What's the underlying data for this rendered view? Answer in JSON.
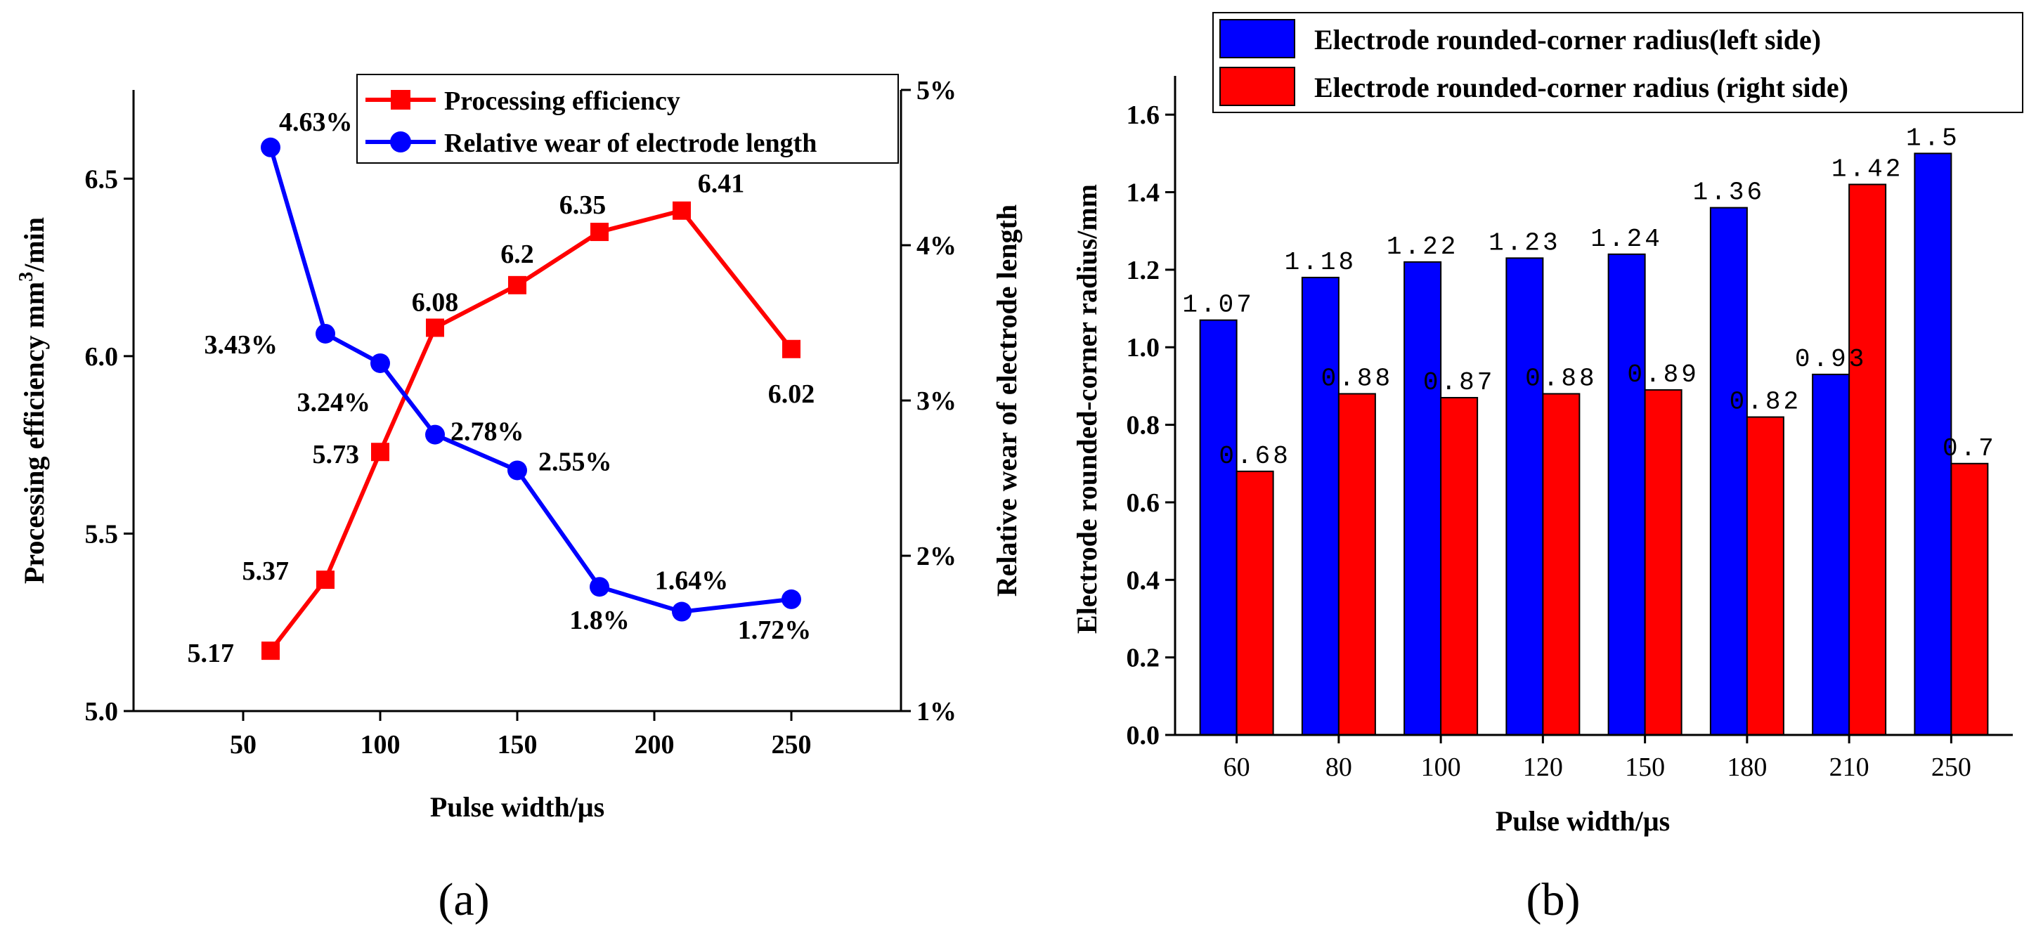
{
  "panel_labels": {
    "a": "(a)",
    "b": "(b)"
  },
  "colors": {
    "red": "#ff0000",
    "blue": "#0000ff",
    "axis": "#000000"
  },
  "chart_data": [
    {
      "type": "line",
      "panel": "(a)",
      "x": [
        60,
        80,
        100,
        120,
        150,
        180,
        210,
        250
      ],
      "xlabel": "Pulse width/μs",
      "xlim": [
        10,
        290
      ],
      "xticks": [
        50,
        100,
        150,
        200,
        250
      ],
      "xtick_labels": [
        "50",
        "100",
        "150",
        "200",
        "250"
      ],
      "ylabel_left_main": "Processing efficiency  mm",
      "ylabel_left_sup": "3",
      "ylabel_left_tail": "/min",
      "ylim_left": [
        5.0,
        6.75
      ],
      "yticks_left": [
        5.0,
        5.5,
        6.0,
        6.5
      ],
      "ytick_labels_left": [
        "5.0",
        "5.5",
        "6.0",
        "6.5"
      ],
      "ylabel_right": "Relative wear of electrode length",
      "ylim_right": [
        1,
        5
      ],
      "yticks_right": [
        1,
        2,
        3,
        4,
        5
      ],
      "ytick_labels_right": [
        "1%",
        "2%",
        "3%",
        "4%",
        "5%"
      ],
      "legend_position": "top-right",
      "series": [
        {
          "name": "Processing efficiency",
          "axis": "left",
          "marker": "square",
          "color": "#ff0000",
          "values": [
            5.17,
            5.37,
            5.73,
            6.08,
            6.2,
            6.35,
            6.41,
            6.02
          ],
          "data_labels": [
            "5.17",
            "5.37",
            "5.73",
            "6.08",
            "6.2",
            "6.35",
            "6.41",
            "6.02"
          ]
        },
        {
          "name": "Relative wear of electrode length",
          "axis": "right",
          "marker": "circle",
          "color": "#0000ff",
          "values": [
            4.63,
            3.43,
            3.24,
            2.78,
            2.55,
            1.8,
            1.64,
            1.72
          ],
          "data_labels": [
            "4.63%",
            "3.43%",
            "3.24%",
            "2.78%",
            "2.55%",
            "1.8%",
            "1.64%",
            "1.72%"
          ]
        }
      ]
    },
    {
      "type": "bar",
      "panel": "(b)",
      "categories": [
        "60",
        "80",
        "100",
        "120",
        "150",
        "180",
        "210",
        "250"
      ],
      "xlabel": "Pulse width/μs",
      "ylabel": "Electrode rounded-corner radius/mm",
      "ylim": [
        0,
        1.7
      ],
      "yticks": [
        0,
        0.2,
        0.4,
        0.6,
        0.8,
        1.0,
        1.2,
        1.4,
        1.6
      ],
      "ytick_labels": [
        "0.0",
        "0.2",
        "0.4",
        "0.6",
        "0.8",
        "1.0",
        "1.2",
        "1.4",
        "1.6"
      ],
      "legend_position": "top",
      "series": [
        {
          "name": "Electrode rounded-corner radius(left side)",
          "color": "#0000ff",
          "values": [
            1.07,
            1.18,
            1.22,
            1.23,
            1.24,
            1.36,
            0.93,
            1.5
          ],
          "data_labels": [
            "1.07",
            "1.18",
            "1.22",
            "1.23",
            "1.24",
            "1.36",
            "0.93",
            "1.5"
          ]
        },
        {
          "name": "Electrode rounded-corner radius (right side)",
          "color": "#ff0000",
          "values": [
            0.68,
            0.88,
            0.87,
            0.88,
            0.89,
            0.82,
            1.42,
            0.7
          ],
          "data_labels": [
            "0.68",
            "0.88",
            "0.87",
            "0.88",
            "0.89",
            "0.82",
            "1.42",
            "0.7"
          ]
        }
      ]
    }
  ]
}
